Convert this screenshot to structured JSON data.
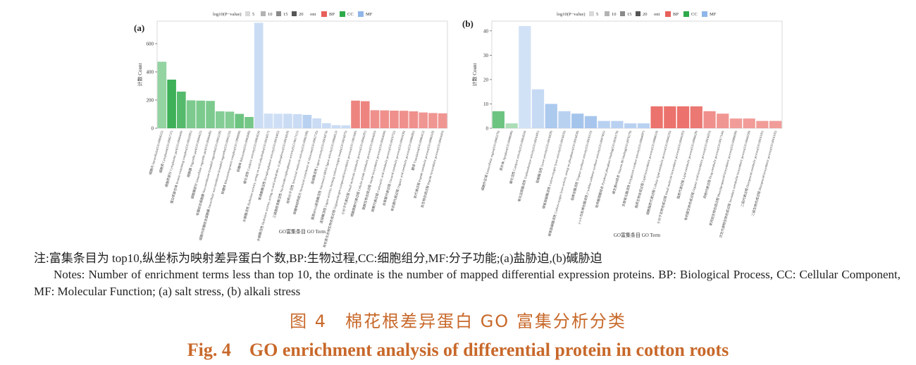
{
  "chart_data": [
    {
      "type": "bar",
      "panel_label": "(a)",
      "ylabel": "计数 Count",
      "xlabel": "GO富集条目 GO Term",
      "ylim": [
        0,
        760
      ],
      "yticks": [
        "0",
        "200",
        "400",
        "600"
      ],
      "legend_title": "log10(P−value)",
      "legend_size_labels": [
        "5",
        "10",
        "15",
        "20"
      ],
      "legend_ont_label": "ont",
      "legend_ont": [
        "BP",
        "CC",
        "MF"
      ],
      "colors": {
        "BP": "#e8605a",
        "CC": "#2eaa4a",
        "MF": "#8fb6e8"
      },
      "bars": [
        {
          "ont": "CC",
          "value": 472,
          "shade": 0.35
        },
        {
          "ont": "CC",
          "value": 345,
          "shade": 0.9
        },
        {
          "ont": "CC",
          "value": 260,
          "shade": 0.75
        },
        {
          "ont": "CC",
          "value": 198,
          "shade": 0.5
        },
        {
          "ont": "CC",
          "value": 196,
          "shade": 0.5
        },
        {
          "ont": "CC",
          "value": 194,
          "shade": 0.5
        },
        {
          "ont": "CC",
          "value": 120,
          "shade": 0.45
        },
        {
          "ont": "CC",
          "value": 118,
          "shade": 0.45
        },
        {
          "ont": "CC",
          "value": 102,
          "shade": 0.6
        },
        {
          "ont": "CC",
          "value": 80,
          "shade": 0.55
        },
        {
          "ont": "MF",
          "value": 748,
          "shade": 0.3
        },
        {
          "ont": "MF",
          "value": 104,
          "shade": 0.25
        },
        {
          "ont": "MF",
          "value": 103,
          "shade": 0.25
        },
        {
          "ont": "MF",
          "value": 103,
          "shade": 0.3
        },
        {
          "ont": "MF",
          "value": 100,
          "shade": 0.3
        },
        {
          "ont": "MF",
          "value": 95,
          "shade": 0.5
        },
        {
          "ont": "MF",
          "value": 70,
          "shade": 0.3
        },
        {
          "ont": "MF",
          "value": 36,
          "shade": 0.3
        },
        {
          "ont": "MF",
          "value": 22,
          "shade": 0.3
        },
        {
          "ont": "MF",
          "value": 21,
          "shade": 0.3
        },
        {
          "ont": "BP",
          "value": 196,
          "shade": 0.7
        },
        {
          "ont": "BP",
          "value": 192,
          "shade": 0.7
        },
        {
          "ont": "BP",
          "value": 128,
          "shade": 0.6
        },
        {
          "ont": "BP",
          "value": 127,
          "shade": 0.6
        },
        {
          "ont": "BP",
          "value": 125,
          "shade": 0.6
        },
        {
          "ont": "BP",
          "value": 124,
          "shade": 0.6
        },
        {
          "ont": "BP",
          "value": 120,
          "shade": 0.6
        },
        {
          "ont": "BP",
          "value": 112,
          "shade": 0.55
        },
        {
          "ont": "BP",
          "value": 108,
          "shade": 0.55
        },
        {
          "ont": "BP",
          "value": 106,
          "shade": 0.55
        }
      ],
      "categories": [
        "细胞内 Intracellular(GO:0005622)",
        "细胞质 Cytoplasm(GO:0005737)",
        "细胞质部分 Cytoplasmic part(GO:0044444)",
        "蛋白质复合体 Protein-containing complex(GO:0032991)",
        "细胞器 Organelle part(GO:0044422)",
        "细胞器部分 Intracellular organelle part(GO:0044446)",
        "非膜结合细胞器 Non-membrane-bounded organelle(GO:0043228)",
        "细胞内非膜结合细胞器 Intracellular non-membrane-bounded organelle(GO:0043232)",
        "核糖体 Ribonucleoprotein complex(GO:1990904)",
        "核糖体 Ribosome(GO:0005840)",
        "催化活性 Catalytic activity(GO:0003824)",
        "水解酶活性 Hydrolase activity, acting on acid anhydrides(GO:0016817)",
        "焦磷酸酶活性 Pyrophosphatase activity(GO:0016462)",
        "水解酶活性 Hydrolase activity, acting on acid anhydrides, in phosphorus(GO:0016818)",
        "三磷酸核苷酶活性 Nucleoside-triphosphatase activity(GO:0017111)",
        "结构分子活性 Structural molecule activity(GO:0005198)",
        "核糖体结构成分 Structural constituent of ribosome(GO:0003735)",
        "连接酶活性 Ligase activity(GO:0016874)",
        "氨酰tRNA连接酶活性 Aminoacyl-tRNA ligase activity(GO:0004812)",
        "连接酶活性 Ligase activity, forming carbon-oxygen bonds(GO:0016875)",
        "有机氮化合物生物合成过程 Organonitrogen compound biosynthetic process(GO:1901566)",
        "小分子代谢过程 Small molecule metabolic process(GO:0044281)",
        "细胞酰胺代谢过程 Cellular amide metabolic process(GO:0043603)",
        "酰胺生物合成过程 Amide biosynthetic process(GO:0043604)",
        "羧酸代谢过程 Carboxylic acid metabolic process(GO:0019752)",
        "含氧酸代谢过程 Oxoacid metabolic process(GO:0043436)",
        "有机酸代谢过程 Organic acid metabolic process(GO:0006082)",
        "翻译 Translation(GO:0006412)",
        "肽代谢过程 Peptide metabolic process(GO:0006518)",
        "肽生物合成过程 Peptide biosynthetic process(GO:0043043)"
      ]
    },
    {
      "type": "bar",
      "panel_label": "(b)",
      "ylabel": "计数 Count",
      "xlabel": "GO富集条目 GO Term",
      "ylim": [
        0,
        44
      ],
      "yticks": [
        "0",
        "10",
        "20",
        "30",
        "40"
      ],
      "legend_title": "log10(P−value)",
      "legend_size_labels": [
        "5",
        "10",
        "15",
        "20"
      ],
      "legend_ont_label": "ont",
      "legend_ont": [
        "BP",
        "CC",
        "MF"
      ],
      "colors": {
        "BP": "#e8605a",
        "CC": "#2eaa4a",
        "MF": "#8fb6e8"
      },
      "bars": [
        {
          "ont": "CC",
          "value": 7,
          "shade": 0.6
        },
        {
          "ont": "CC",
          "value": 2,
          "shade": 0.2
        },
        {
          "ont": "MF",
          "value": 42,
          "shade": 0.2
        },
        {
          "ont": "MF",
          "value": 16,
          "shade": 0.35
        },
        {
          "ont": "MF",
          "value": 10,
          "shade": 0.65
        },
        {
          "ont": "MF",
          "value": 7,
          "shade": 0.5
        },
        {
          "ont": "MF",
          "value": 6,
          "shade": 0.75
        },
        {
          "ont": "MF",
          "value": 5,
          "shade": 0.7
        },
        {
          "ont": "MF",
          "value": 3,
          "shade": 0.5
        },
        {
          "ont": "MF",
          "value": 3,
          "shade": 0.5
        },
        {
          "ont": "MF",
          "value": 2,
          "shade": 0.5
        },
        {
          "ont": "MF",
          "value": 2,
          "shade": 0.5
        },
        {
          "ont": "BP",
          "value": 9,
          "shade": 0.85
        },
        {
          "ont": "BP",
          "value": 9,
          "shade": 0.85
        },
        {
          "ont": "BP",
          "value": 9,
          "shade": 0.85
        },
        {
          "ont": "BP",
          "value": 9,
          "shade": 0.8
        },
        {
          "ont": "BP",
          "value": 7,
          "shade": 0.6
        },
        {
          "ont": "BP",
          "value": 6,
          "shade": 0.55
        },
        {
          "ont": "BP",
          "value": 4,
          "shade": 0.5
        },
        {
          "ont": "BP",
          "value": 4,
          "shade": 0.5
        },
        {
          "ont": "BP",
          "value": 3,
          "shade": 0.5
        },
        {
          "ont": "BP",
          "value": 3,
          "shade": 0.5
        }
      ],
      "categories": [
        "细胞外区域 Extracellular region(GO:0005576)",
        "质外体 Apoplast(GO:0048046)",
        "催化活性 Catalytic activity(GO:0003824)",
        "氧化还原酶活性 Oxidoreductase activity(GO:0016491)",
        "裂解酶活性 Lyase activity(GO:0016829)",
        "碳氧裂解酶活性 Carbon-oxygen lyase activity(GO:0016835)",
        "碳氧裂解酶活性 Carbon-oxygen lyase activity, acting on phosphates(GO:0016838)",
        "萜烯合酶活性 Terpene synthase activity(GO:0010333)",
        "(+)-δ-杜松烯合酶活性 (+)-delta-cadinene synthase activity(GO:0047461)",
        "吡哆醛磷酸结合 Pyridoxal phosphate binding(GO:0030170)",
        "维生素B6结合 Vitamin B6 binding(GO:0070279)",
        "多酚氧化酶活性 Polyphenol oxidase activity(GO:0004097)",
        "脂质生物合成过程 Lipid biosynthetic process(GO:0008610)",
        "细胞脂质代谢过程 Cellular lipid metabolic process(GO:0044255)",
        "小分子生物合成过程 Small molecule biosynthetic process(GO:0044283)",
        "脂质代谢过程 Lipid metabolic process(GO:0006629)",
        "有机酸生物合成过程 Organic acid biosynthetic process(GO:0016053)",
        "药物代谢过程 Drug metabolic process(GO:0017144)",
        "苯丙烷生物合成过程 Phenylpropanoid biosynthetic process(GO:0009699)",
        "次生代谢物生物合成过程 Secondary metabolite biosynthetic process(GO:0044550)",
        "二萜代谢过程 Diterpenoid metabolic process(GO:0016101)",
        "二萜生物合成过程 Diterpenoid biosynthetic process(GO:0016102)"
      ]
    }
  ],
  "captions": {
    "note_cn": "注:富集条目为 top10,纵坐标为映射差异蛋白个数,BP:生物过程,CC:细胞组分,MF:分子功能;(a)盐胁迫,(b)碱胁迫",
    "note_en": "Notes: Number of enrichment terms less than top 10, the ordinate is the number of mapped differential expression proteins. BP: Biological Process, CC: Cellular Component, MF: Molecular Function; (a) salt stress, (b) alkali stress",
    "title_cn": "图 4　棉花根差异蛋白 GO 富集分析分类",
    "title_en": "Fig. 4　GO enrichment analysis of differential protein in cotton roots"
  }
}
